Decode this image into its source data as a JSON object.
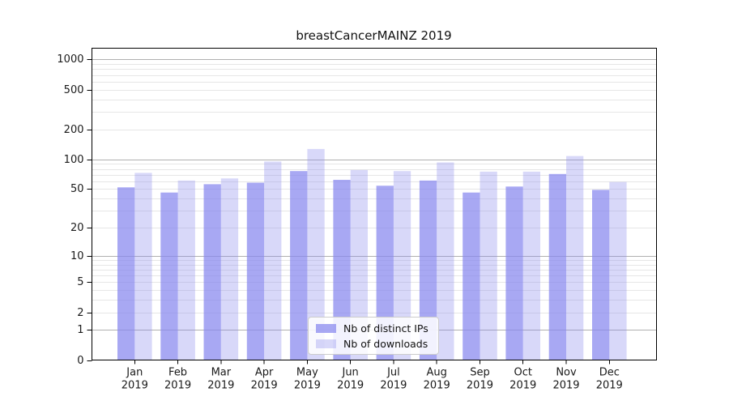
{
  "title": "breastCancerMAINZ 2019",
  "chart_data": {
    "type": "bar",
    "title": "breastCancerMAINZ 2019",
    "y_scale": "log1p",
    "grid": true,
    "ylim": [
      0,
      1300
    ],
    "y_tick_labels": [
      0,
      1,
      2,
      5,
      10,
      20,
      50,
      100,
      200,
      500,
      1000
    ],
    "major_gridlines": [
      1,
      10,
      100,
      1000
    ],
    "minor_gridlines": [
      2,
      3,
      4,
      5,
      6,
      7,
      8,
      9,
      20,
      30,
      40,
      50,
      60,
      70,
      80,
      90,
      200,
      300,
      400,
      500,
      600,
      700,
      800,
      900
    ],
    "categories": [
      "Jan",
      "Feb",
      "Mar",
      "Apr",
      "May",
      "Jun",
      "Jul",
      "Aug",
      "Sep",
      "Oct",
      "Nov",
      "Dec"
    ],
    "x_year_label": "2019",
    "legend_position": "lower center",
    "series": [
      {
        "name": "Nb of distinct IPs",
        "color": "#8888ee",
        "opacity": 0.73,
        "values": [
          52,
          46,
          56,
          58,
          76,
          62,
          54,
          61,
          46,
          53,
          71,
          49
        ]
      },
      {
        "name": "Nb of downloads",
        "color": "#8888ee",
        "opacity": 0.33,
        "values": [
          73,
          61,
          64,
          95,
          127,
          78,
          76,
          93,
          75,
          75,
          108,
          59
        ]
      }
    ],
    "colors": {
      "major_grid": "#b0b0b0",
      "minor_grid": "#e6e6e6",
      "axis": "#000000",
      "text": "#1a1a1a"
    }
  }
}
